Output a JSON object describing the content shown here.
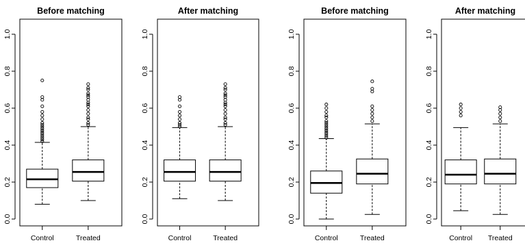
{
  "chart_data": [
    {
      "type": "box",
      "title": "Before matching",
      "categories": [
        "Control",
        "Treated"
      ],
      "ylim": [
        0,
        1.0
      ],
      "yticks": [
        "0.0",
        "0.2",
        "0.4",
        "0.6",
        "0.8",
        "1.0"
      ],
      "boxes": [
        {
          "name": "Control",
          "min": 0.08,
          "q1": 0.17,
          "median": 0.215,
          "q3": 0.27,
          "max": 0.415,
          "outliers": [
            0.42,
            0.43,
            0.44,
            0.45,
            0.46,
            0.47,
            0.48,
            0.49,
            0.5,
            0.51,
            0.52,
            0.54,
            0.56,
            0.58,
            0.61,
            0.645,
            0.66,
            0.75
          ]
        },
        {
          "name": "Treated",
          "min": 0.1,
          "q1": 0.205,
          "median": 0.255,
          "q3": 0.32,
          "max": 0.5,
          "outliers": [
            0.51,
            0.52,
            0.54,
            0.55,
            0.57,
            0.59,
            0.61,
            0.62,
            0.63,
            0.645,
            0.66,
            0.67,
            0.68,
            0.7,
            0.71,
            0.73
          ]
        }
      ]
    },
    {
      "type": "box",
      "title": "After matching",
      "categories": [
        "Control",
        "Treated"
      ],
      "ylim": [
        0,
        1.0
      ],
      "yticks": [
        "0.0",
        "0.2",
        "0.4",
        "0.6",
        "0.8",
        "1.0"
      ],
      "boxes": [
        {
          "name": "Control",
          "min": 0.11,
          "q1": 0.205,
          "median": 0.255,
          "q3": 0.32,
          "max": 0.495,
          "outliers": [
            0.5,
            0.51,
            0.52,
            0.54,
            0.56,
            0.58,
            0.61,
            0.645,
            0.66
          ]
        },
        {
          "name": "Treated",
          "min": 0.1,
          "q1": 0.205,
          "median": 0.255,
          "q3": 0.32,
          "max": 0.5,
          "outliers": [
            0.51,
            0.52,
            0.54,
            0.55,
            0.57,
            0.59,
            0.61,
            0.62,
            0.63,
            0.645,
            0.66,
            0.67,
            0.68,
            0.7,
            0.71,
            0.73
          ]
        }
      ]
    },
    {
      "type": "box",
      "title": "Before matching",
      "categories": [
        "Control",
        "Treated"
      ],
      "ylim": [
        0,
        1.0
      ],
      "yticks": [
        "0.0",
        "0.2",
        "0.4",
        "0.6",
        "0.8",
        "1.0"
      ],
      "boxes": [
        {
          "name": "Control",
          "min": 0.0,
          "q1": 0.14,
          "median": 0.195,
          "q3": 0.26,
          "max": 0.435,
          "outliers": [
            0.44,
            0.45,
            0.46,
            0.47,
            0.48,
            0.49,
            0.5,
            0.51,
            0.52,
            0.53,
            0.55,
            0.56,
            0.58,
            0.6,
            0.62
          ]
        },
        {
          "name": "Treated",
          "min": 0.025,
          "q1": 0.19,
          "median": 0.245,
          "q3": 0.325,
          "max": 0.515,
          "outliers": [
            0.53,
            0.55,
            0.57,
            0.59,
            0.61,
            0.69,
            0.705,
            0.745
          ]
        }
      ]
    },
    {
      "type": "box",
      "title": "After matching",
      "categories": [
        "Control",
        "Treated"
      ],
      "ylim": [
        0,
        1.0
      ],
      "yticks": [
        "0.0",
        "0.2",
        "0.4",
        "0.6",
        "0.8",
        "1.0"
      ],
      "boxes": [
        {
          "name": "Control",
          "min": 0.045,
          "q1": 0.19,
          "median": 0.24,
          "q3": 0.32,
          "max": 0.495,
          "outliers": [
            0.56,
            0.58,
            0.6,
            0.62
          ]
        },
        {
          "name": "Treated",
          "min": 0.025,
          "q1": 0.19,
          "median": 0.245,
          "q3": 0.325,
          "max": 0.515,
          "outliers": [
            0.53,
            0.55,
            0.57,
            0.59,
            0.605
          ]
        }
      ]
    }
  ]
}
